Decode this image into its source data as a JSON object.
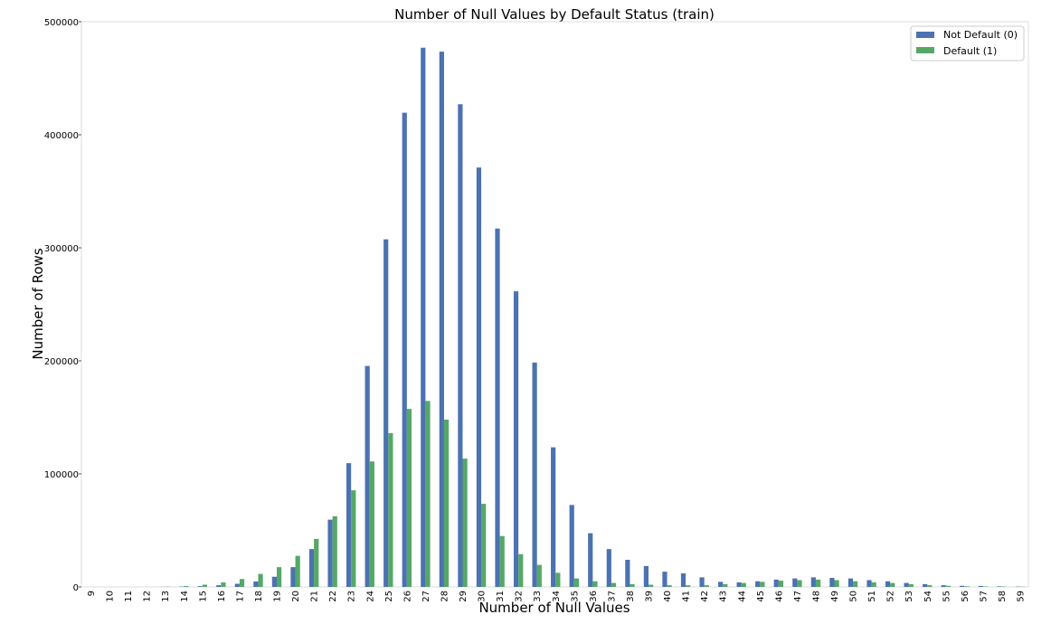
{
  "chart_data": {
    "type": "bar",
    "title": "Number of Null Values by Default Status (train)",
    "xlabel": "Number of Null Values",
    "ylabel": "Number of Rows",
    "ylim": [
      0,
      500000
    ],
    "yticks": [
      "0",
      "100000",
      "200000",
      "300000",
      "400000",
      "500000"
    ],
    "categories": [
      "9",
      "10",
      "11",
      "12",
      "13",
      "14",
      "15",
      "16",
      "17",
      "18",
      "19",
      "20",
      "21",
      "22",
      "23",
      "24",
      "25",
      "26",
      "27",
      "28",
      "29",
      "30",
      "31",
      "32",
      "33",
      "34",
      "35",
      "36",
      "37",
      "38",
      "39",
      "40",
      "41",
      "42",
      "43",
      "44",
      "45",
      "46",
      "47",
      "48",
      "49",
      "50",
      "51",
      "52",
      "53",
      "54",
      "55",
      "56",
      "57",
      "58",
      "59"
    ],
    "series": [
      {
        "name": "Not Default (0)",
        "color": "#4c72b0",
        "values": [
          0,
          0,
          0,
          0,
          100,
          300,
          700,
          1500,
          2800,
          4800,
          9000,
          17500,
          33500,
          59500,
          109500,
          195500,
          307500,
          419500,
          477000,
          473500,
          427000,
          371000,
          317000,
          261500,
          198500,
          123500,
          72500,
          47500,
          33500,
          24000,
          18500,
          13500,
          12000,
          8500,
          4500,
          4000,
          5000,
          6500,
          7500,
          8500,
          8000,
          7500,
          6000,
          5000,
          3500,
          2500,
          1500,
          1000,
          800,
          500,
          300
        ]
      },
      {
        "name": "Default (1)",
        "color": "#55a868",
        "values": [
          0,
          0,
          0,
          0,
          200,
          800,
          2000,
          4000,
          7000,
          11500,
          17500,
          27500,
          42500,
          62500,
          85500,
          111000,
          136000,
          157500,
          164500,
          148000,
          113500,
          73500,
          45000,
          29000,
          19500,
          12500,
          7500,
          5000,
          3500,
          2500,
          2000,
          1500,
          1500,
          1500,
          2500,
          3500,
          4500,
          5500,
          6000,
          6500,
          6000,
          5000,
          4000,
          3500,
          2500,
          1500,
          1000,
          600,
          400,
          300,
          200
        ]
      }
    ],
    "legend": {
      "location": "top-right"
    },
    "grid": false
  }
}
